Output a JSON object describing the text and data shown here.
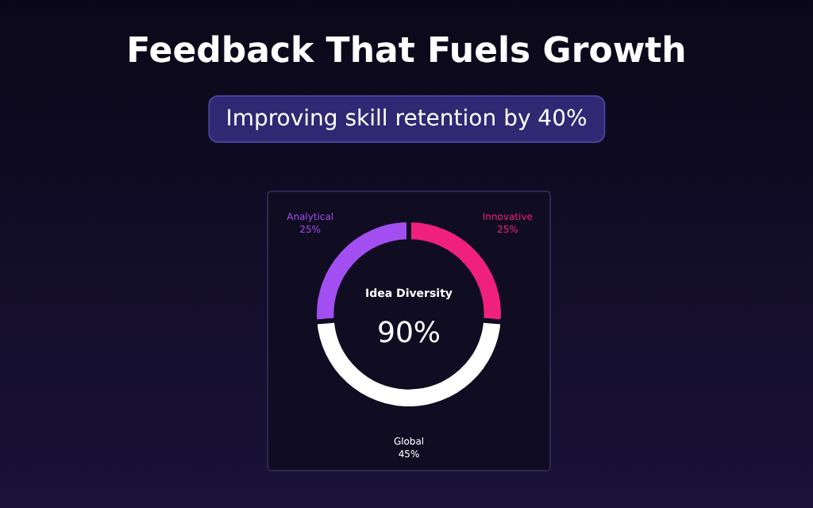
{
  "chart_data": {
    "type": "donut",
    "title": "Feedback That Fuels Growth",
    "subtitle": "Improving skill retention by 40%",
    "categories": [
      "Analytical",
      "Innovative",
      "Global"
    ],
    "values": [
      25,
      25,
      45
    ],
    "colors": [
      "#a24ef0",
      "#f0207f",
      "#ffffff"
    ],
    "value_labels": [
      "25%",
      "25%",
      "45%"
    ],
    "annotations": [
      "Idea Diversity",
      "90%"
    ],
    "legend": false
  }
}
